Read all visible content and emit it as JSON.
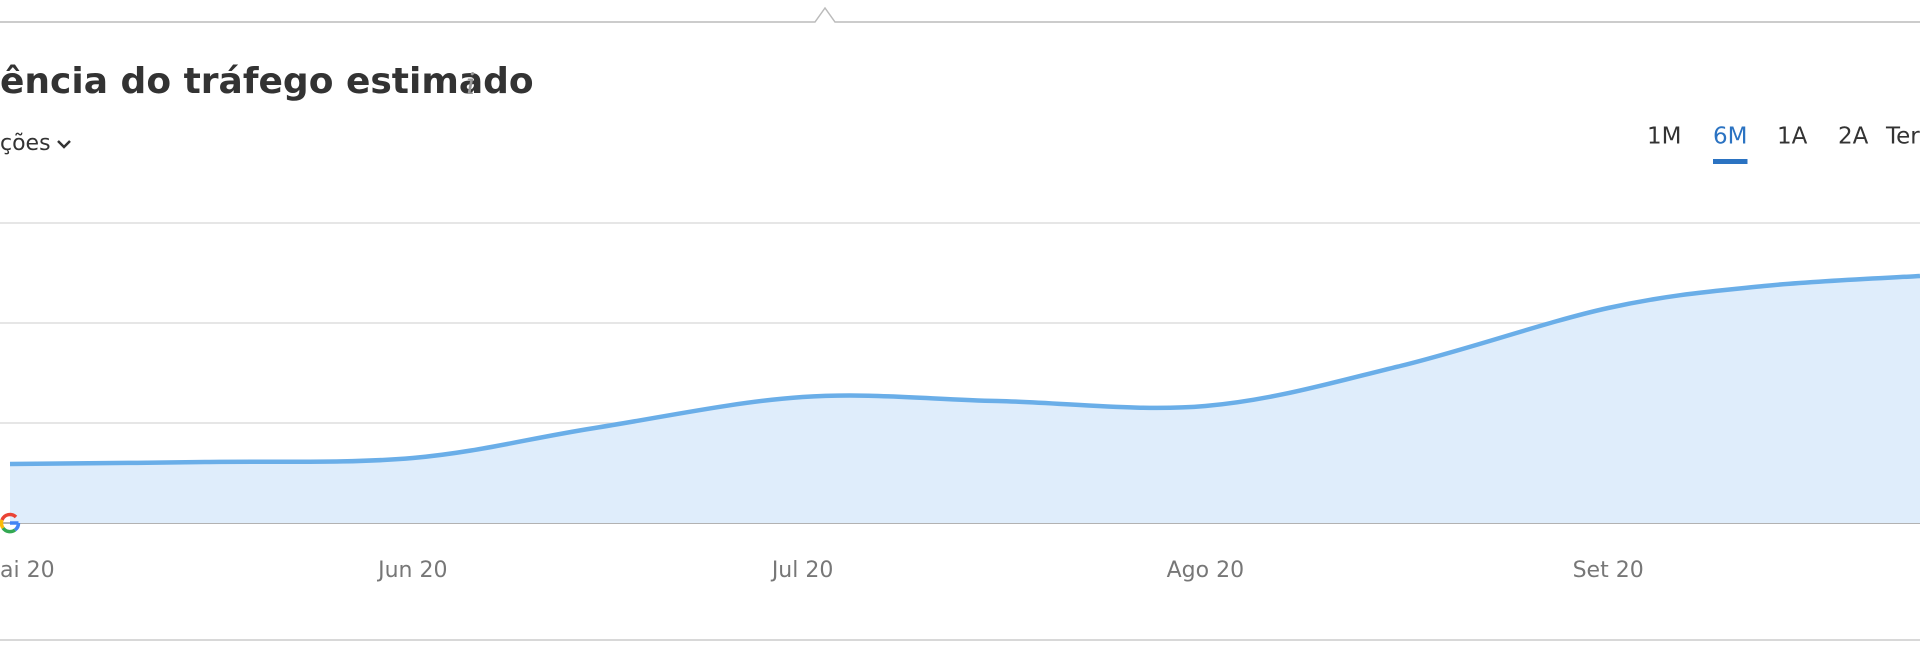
{
  "header": {
    "title": "ência do tráfego estimado",
    "info": "i",
    "dropdown": "ções"
  },
  "periods": {
    "options": [
      "1M",
      "6M",
      "1A",
      "2A",
      "Ter"
    ],
    "active": 1
  },
  "chart_data": {
    "type": "area",
    "x": [
      0,
      15,
      31,
      45,
      61,
      76,
      92,
      107,
      123,
      135,
      147
    ],
    "values": [
      0.59,
      0.61,
      0.65,
      0.95,
      1.26,
      1.22,
      1.17,
      1.57,
      2.15,
      2.37,
      2.47
    ],
    "color": "#6aaee8",
    "fill": "#dfedfb",
    "xlim": [
      0,
      147
    ],
    "xticks": [
      {
        "value": 0,
        "label": "ai 20"
      },
      {
        "value": 31,
        "label": "Jun 20"
      },
      {
        "value": 61,
        "label": "Jul 20"
      },
      {
        "value": 92,
        "label": "Ago 20"
      },
      {
        "value": 123,
        "label": "Set 20"
      }
    ],
    "ylim": [
      0,
      3
    ],
    "yticks": [
      0,
      1,
      2,
      3
    ],
    "grid": true
  }
}
